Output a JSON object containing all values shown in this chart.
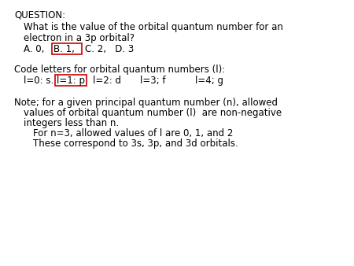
{
  "bg_color": "#ffffff",
  "text_color": "#000000",
  "red_box_color": "#cc0000",
  "title_line": "QUESTION:",
  "q_line1": "What is the value of the orbital quantum number for an",
  "q_line2": "electron in a 3p orbital?",
  "ans_A": "A. 0,",
  "ans_B": "B. 1,",
  "ans_CD": "C. 2,   D. 3",
  "code_header": "Code letters for orbital quantum numbers (l):",
  "code_item0": "l=0: s.",
  "code_item1": "l=1: p",
  "code_item2": "l=2: d",
  "code_item3": "l=3; f",
  "code_item4": "l=4; g",
  "note_line1": "Note; for a given principal quantum number (n), allowed",
  "note_line2": "values of orbital quantum number (l)  are non-negative",
  "note_line3": "integers less than n.",
  "note_line4": "For n=3, allowed values of l are 0, 1, and 2",
  "note_line5": "These correspond to 3s, 3p, and 3d orbitals.",
  "font_size": 8.5,
  "font_family": "DejaVu Sans"
}
